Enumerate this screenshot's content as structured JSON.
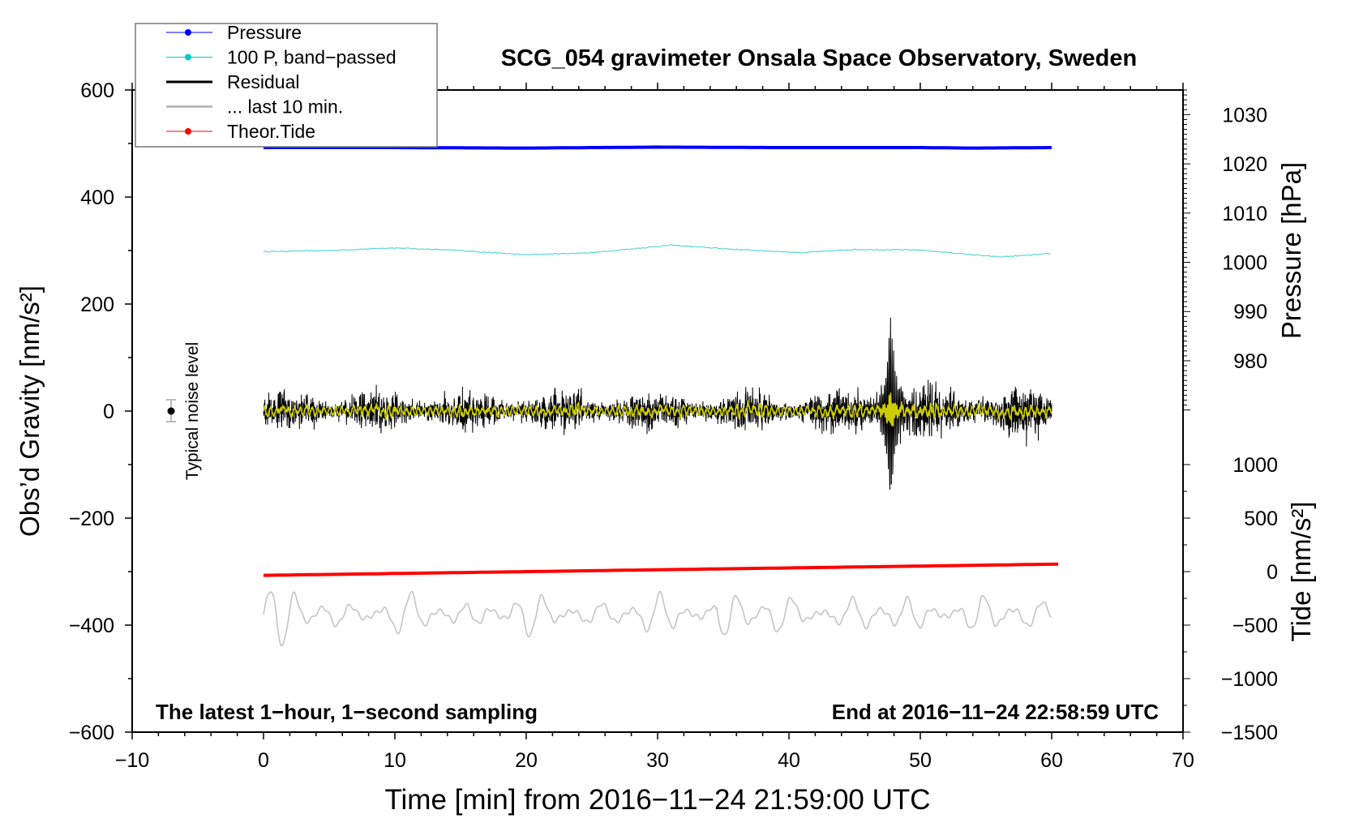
{
  "chart_data": {
    "type": "line",
    "title": "SCG_054 gravimeter Onsala Space Observatory, Sweden",
    "xlabel": "Time [min] from 2016−11−24 21:59:00 UTC",
    "ylabel": "Obs’d Gravity [nm/s²]",
    "ylabel_right_top": "Pressure [hPa]",
    "ylabel_right_bottom": "Tide [nm/s²]",
    "xlim": [
      -10,
      70
    ],
    "ylim": [
      -600,
      600
    ],
    "pressure_axis_range": [
      980,
      1030
    ],
    "tide_axis_range": [
      -1500,
      1000
    ],
    "x_ticks": [
      "−10",
      "0",
      "10",
      "20",
      "30",
      "40",
      "50",
      "60",
      "70"
    ],
    "x_tick_values": [
      -10,
      0,
      10,
      20,
      30,
      40,
      50,
      60,
      70
    ],
    "y_ticks": [
      "−600",
      "−400",
      "−200",
      "0",
      "200",
      "400",
      "600"
    ],
    "y_tick_values": [
      -600,
      -400,
      -200,
      0,
      200,
      400,
      600
    ],
    "pressure_ticks": [
      "980",
      "990",
      "1000",
      "1010",
      "1020",
      "1030"
    ],
    "pressure_tick_values": [
      980,
      990,
      1000,
      1010,
      1020,
      1030
    ],
    "tide_ticks": [
      "−1500",
      "−1000",
      "−500",
      "0",
      "500",
      "1000"
    ],
    "tide_tick_values": [
      -1500,
      -1000,
      -500,
      0,
      500,
      1000
    ],
    "legend": {
      "placement": "top-left",
      "entries": [
        {
          "label": "Pressure",
          "color": "#0000ff",
          "marker": true
        },
        {
          "label": "100 P, band−passed",
          "color": "#00cccc",
          "marker": true
        },
        {
          "label": "Residual",
          "color": "#000000",
          "marker": false
        },
        {
          "label": "... last 10 min.",
          "color": "#bbbbbb",
          "marker": false
        },
        {
          "label": "Theor.Tide",
          "color": "#ff0000",
          "marker": true
        }
      ]
    },
    "annotations": {
      "left_bottom": "The latest 1−hour, 1−second sampling",
      "right_bottom": "End at 2016−11−24 22:58:59 UTC",
      "noise_label": "Typical noise level"
    },
    "noise_level": {
      "x": -7,
      "y": 0,
      "error": 20
    },
    "series": [
      {
        "name": "Pressure",
        "unit": "hPa",
        "x": [
          0,
          10,
          20,
          30,
          40,
          50,
          54,
          60
        ],
        "values": [
          1023.3,
          1023.3,
          1023.2,
          1023.4,
          1023.3,
          1023.3,
          1023.2,
          1023.3
        ]
      },
      {
        "name": "100 P, band-passed",
        "unit": "gravity axis nm/s2",
        "x": [
          0,
          5,
          10,
          15,
          20,
          25,
          31,
          36,
          41,
          45,
          50,
          54,
          56,
          60
        ],
        "values": [
          298,
          300,
          305,
          300,
          292,
          296,
          310,
          302,
          296,
          302,
          301,
          292,
          288,
          294
        ]
      },
      {
        "name": "Residual",
        "unit": "nm/s2",
        "baseline": 0,
        "typical_amplitude": 25,
        "event_time": 47.8,
        "max": 205,
        "min": -172
      },
      {
        "name": "Residual (filtered)",
        "color": "#cccc00",
        "baseline": 0,
        "typical_amplitude": 12
      },
      {
        "name": "... last 10 min.",
        "unit": "gravity axis nm/s2",
        "baseline": -380,
        "min": -428,
        "max": -315
      },
      {
        "name": "Theor.Tide",
        "unit": "nm/s2 (tide axis)",
        "x": [
          0,
          60.5
        ],
        "values": [
          -35,
          70
        ]
      }
    ]
  }
}
